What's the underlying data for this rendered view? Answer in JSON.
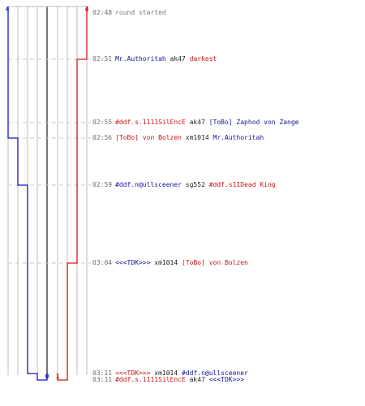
{
  "colors": {
    "blue_team": "#1414c8",
    "red_team": "#d21414",
    "grid": "#bdbdbd",
    "dash": "#c8c8c8",
    "weapon": "#222222",
    "time": "#6e6e6e"
  },
  "score_axis": {
    "top_left": "4",
    "top_right": "4",
    "bottom_zero": "0",
    "bottom_one": "1"
  },
  "chart_data": {
    "type": "line",
    "x_label_ticks": [
      "0",
      "1",
      "4"
    ],
    "times": [
      "02:48",
      "02:51",
      "02:55",
      "02:56",
      "02:59",
      "03:04",
      "03:11",
      "03:11"
    ],
    "series": [
      {
        "values": [
          4,
          4,
          4,
          3,
          2,
          2,
          1,
          0
        ]
      },
      {
        "values": [
          4,
          3,
          3,
          3,
          3,
          2,
          2,
          1
        ]
      }
    ]
  },
  "events": [
    {
      "time": "02:48",
      "parts": [
        {
          "text": "round started",
          "c": "gray"
        }
      ]
    },
    {
      "time": "02:51",
      "parts": [
        {
          "text": "Mr.Authoritah",
          "c": "blue"
        },
        {
          "text": "ak47",
          "c": "black"
        },
        {
          "text": "darkest",
          "c": "red"
        }
      ]
    },
    {
      "time": "02:55",
      "parts": [
        {
          "text": "#ddf.s.1111SilEncE",
          "c": "red"
        },
        {
          "text": "ak47",
          "c": "black"
        },
        {
          "text": "[ToBo] Zaphod von Zange",
          "c": "blue"
        }
      ]
    },
    {
      "time": "02:56",
      "parts": [
        {
          "text": "[ToBo] von Bolzen",
          "c": "red"
        },
        {
          "text": "xm1014",
          "c": "black"
        },
        {
          "text": "Mr.Authoritah",
          "c": "blue"
        }
      ]
    },
    {
      "time": "02:59",
      "parts": [
        {
          "text": "#ddf.n@ullsceener",
          "c": "blue"
        },
        {
          "text": "sg552",
          "c": "black"
        },
        {
          "text": "#ddf.s1IDead King",
          "c": "red"
        }
      ]
    },
    {
      "time": "03:04",
      "parts": [
        {
          "text": "<<<TDK>>>",
          "c": "blue"
        },
        {
          "text": "xm1014",
          "c": "black"
        },
        {
          "text": "[ToBo] von Bolzen",
          "c": "red"
        }
      ]
    },
    {
      "time": "03:11",
      "parts": [
        {
          "text": "<<<TDK>>>",
          "c": "red"
        },
        {
          "text": "xm1014",
          "c": "black"
        },
        {
          "text": "#ddf.n@ullsceener",
          "c": "blue"
        }
      ]
    },
    {
      "time": "03:11",
      "parts": [
        {
          "text": "#ddf.s.1111SilEncE",
          "c": "red"
        },
        {
          "text": "ak47",
          "c": "black"
        },
        {
          "text": "<<<TDK>>>",
          "c": "blue"
        }
      ]
    }
  ]
}
